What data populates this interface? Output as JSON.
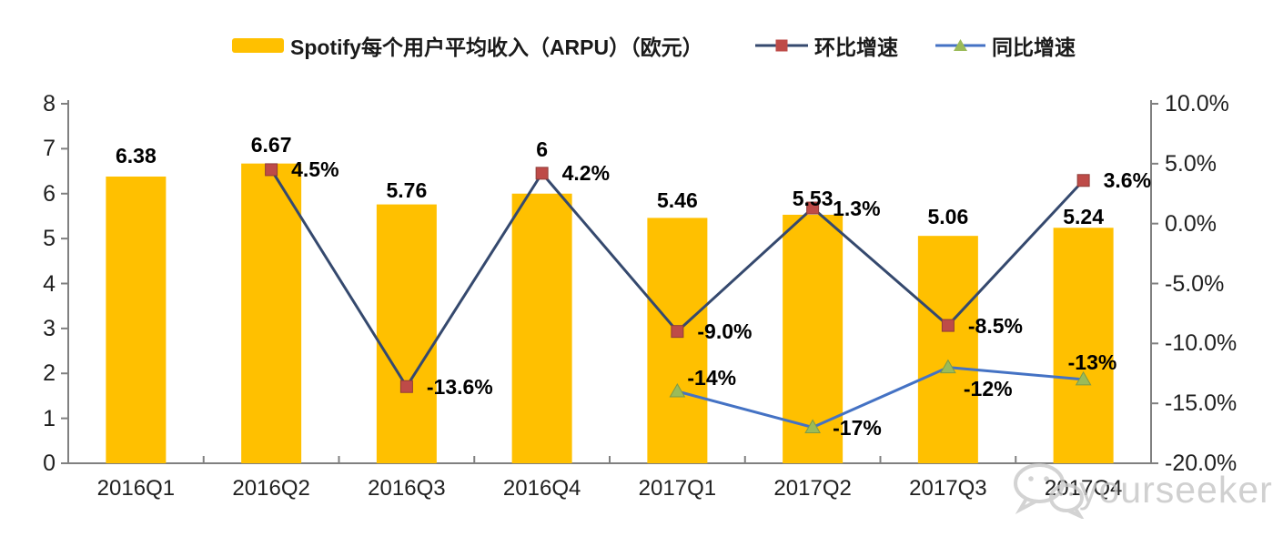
{
  "legend": {
    "arpu_label": "Spotify每个用户平均收入（ARPU）（欧元）",
    "qoq_label": "环比增速",
    "yoy_label": "同比增速"
  },
  "watermark": {
    "text": "yourseeker",
    "icon": "wechat-icon"
  },
  "colors": {
    "bar": "#FFC000",
    "qoq_line": "#35496E",
    "qoq_marker": "#BE4B48",
    "qoq_marker_edge": "#8F3C39",
    "yoy_line": "#4472C4",
    "yoy_marker": "#9BBB59",
    "yoy_marker_edge": "#7D9A48",
    "axis": "#808080",
    "tick_text": "#1F1F1F",
    "label_text": "#000000",
    "watermark_gray": "#C9C9C9"
  },
  "chart_data": {
    "type": "combo-bar-line",
    "title": "Spotify每个用户平均收入（ARPU）（欧元）",
    "categories": [
      "2016Q1",
      "2016Q2",
      "2016Q3",
      "2016Q4",
      "2017Q1",
      "2017Q2",
      "2017Q3",
      "2017Q4"
    ],
    "series": [
      {
        "name": "Spotify每个用户平均收入（ARPU）（欧元）",
        "type": "bar",
        "axis": "left",
        "values": [
          6.38,
          6.67,
          5.76,
          6,
          5.46,
          5.53,
          5.06,
          5.24
        ],
        "labels": [
          "6.38",
          "6.67",
          "5.76",
          "6",
          "5.46",
          "5.53",
          "5.06",
          "5.24"
        ]
      },
      {
        "name": "环比增速",
        "type": "line",
        "axis": "right",
        "marker": "square",
        "values": [
          null,
          4.5,
          -13.6,
          4.2,
          -9.0,
          1.3,
          -8.5,
          3.6
        ],
        "labels": [
          null,
          "4.5%",
          "-13.6%",
          "4.2%",
          "-9.0%",
          "1.3%",
          "-8.5%",
          "3.6%"
        ],
        "label_pos": [
          null,
          "right",
          "right",
          "right",
          "right",
          "right",
          "right",
          "right"
        ]
      },
      {
        "name": "同比增速",
        "type": "line",
        "axis": "right",
        "marker": "triangle",
        "values": [
          null,
          null,
          null,
          null,
          -14,
          -17,
          -12,
          -13
        ],
        "labels": [
          null,
          null,
          null,
          null,
          "-14%",
          "-17%",
          "-12%",
          "-13%"
        ],
        "label_pos": [
          null,
          null,
          null,
          null,
          "above-right",
          "right",
          "below-right",
          "above"
        ]
      }
    ],
    "left_axis": {
      "min": 0,
      "max": 8,
      "ticks": [
        "0",
        "1",
        "2",
        "3",
        "4",
        "5",
        "6",
        "7",
        "8"
      ]
    },
    "right_axis": {
      "min": -20,
      "max": 10,
      "ticks": [
        "10.0%",
        "5.0%",
        "0.0%",
        "-5.0%",
        "-10.0%",
        "-15.0%",
        "-20.0%"
      ]
    },
    "legend_position": "top",
    "grid": false
  }
}
